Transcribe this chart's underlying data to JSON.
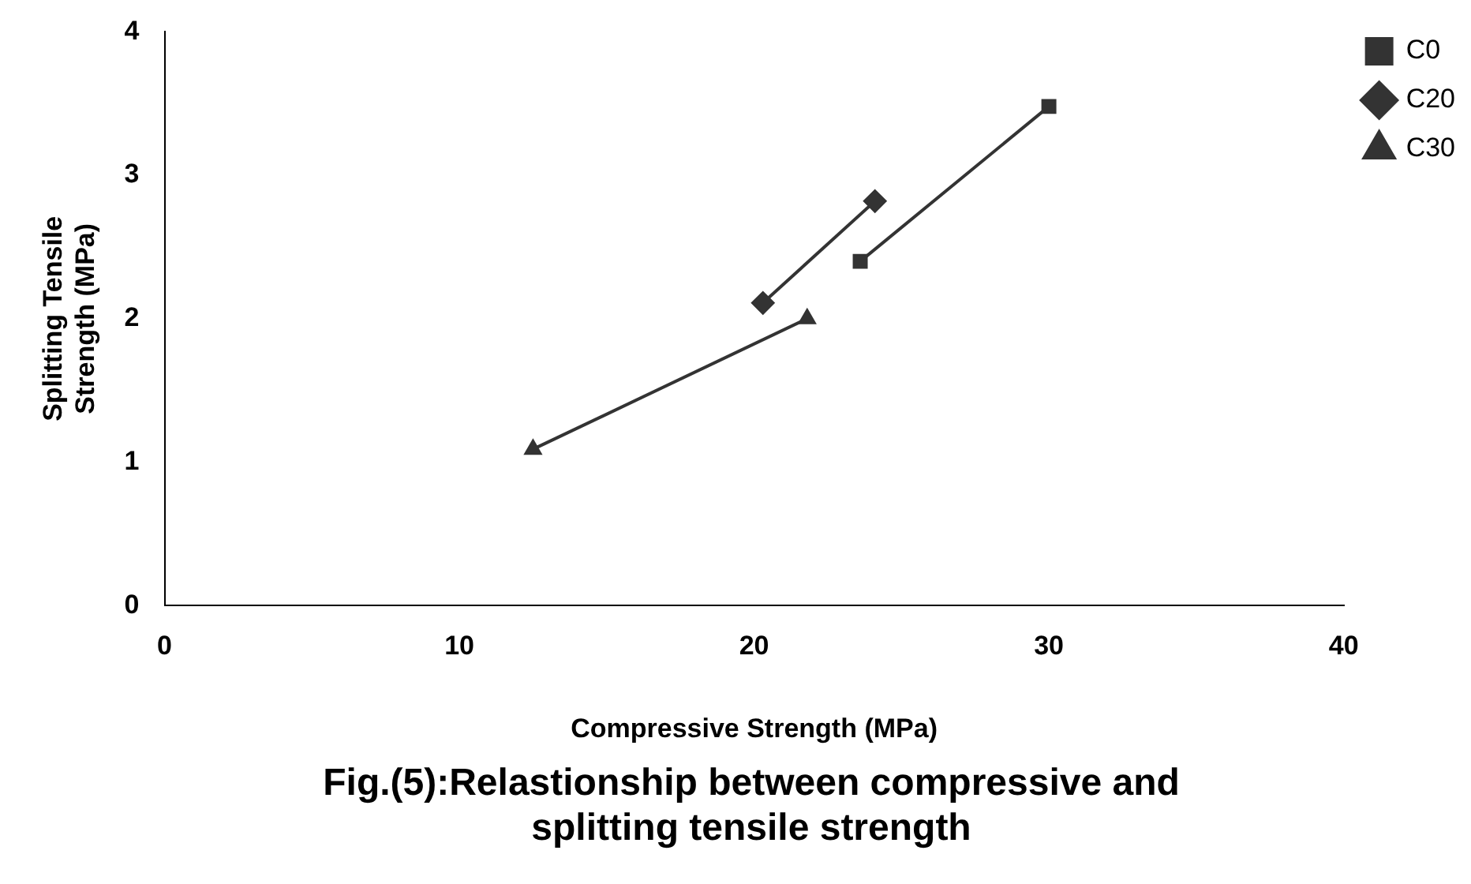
{
  "chart_data": {
    "type": "line",
    "title": "Fig.(5):Relastionship between compressive and splitting tensile strength",
    "xlabel": "Compressive Strength (MPa)",
    "ylabel": "Splitting Tensile Strength (MPa)",
    "xlim": [
      0,
      40
    ],
    "xticks": [
      0,
      10,
      20,
      30,
      40
    ],
    "ylim": [
      0,
      4
    ],
    "yticks": [
      0,
      1,
      2,
      3,
      4
    ],
    "grid": false,
    "legend": "top right",
    "line_style": "solid",
    "series": [
      {
        "name": "C0",
        "color": "#333333",
        "marker": "square",
        "x": [
          23.6,
          30.0
        ],
        "values": [
          2.4,
          3.48
        ]
      },
      {
        "name": "C20",
        "color": "#333333",
        "marker": "diamond",
        "x": [
          20.3,
          24.1
        ],
        "values": [
          2.11,
          2.82
        ]
      },
      {
        "name": "C30",
        "color": "#333333",
        "marker": "triangle",
        "x": [
          12.5,
          21.8
        ],
        "values": [
          1.09,
          2.0
        ]
      }
    ]
  }
}
